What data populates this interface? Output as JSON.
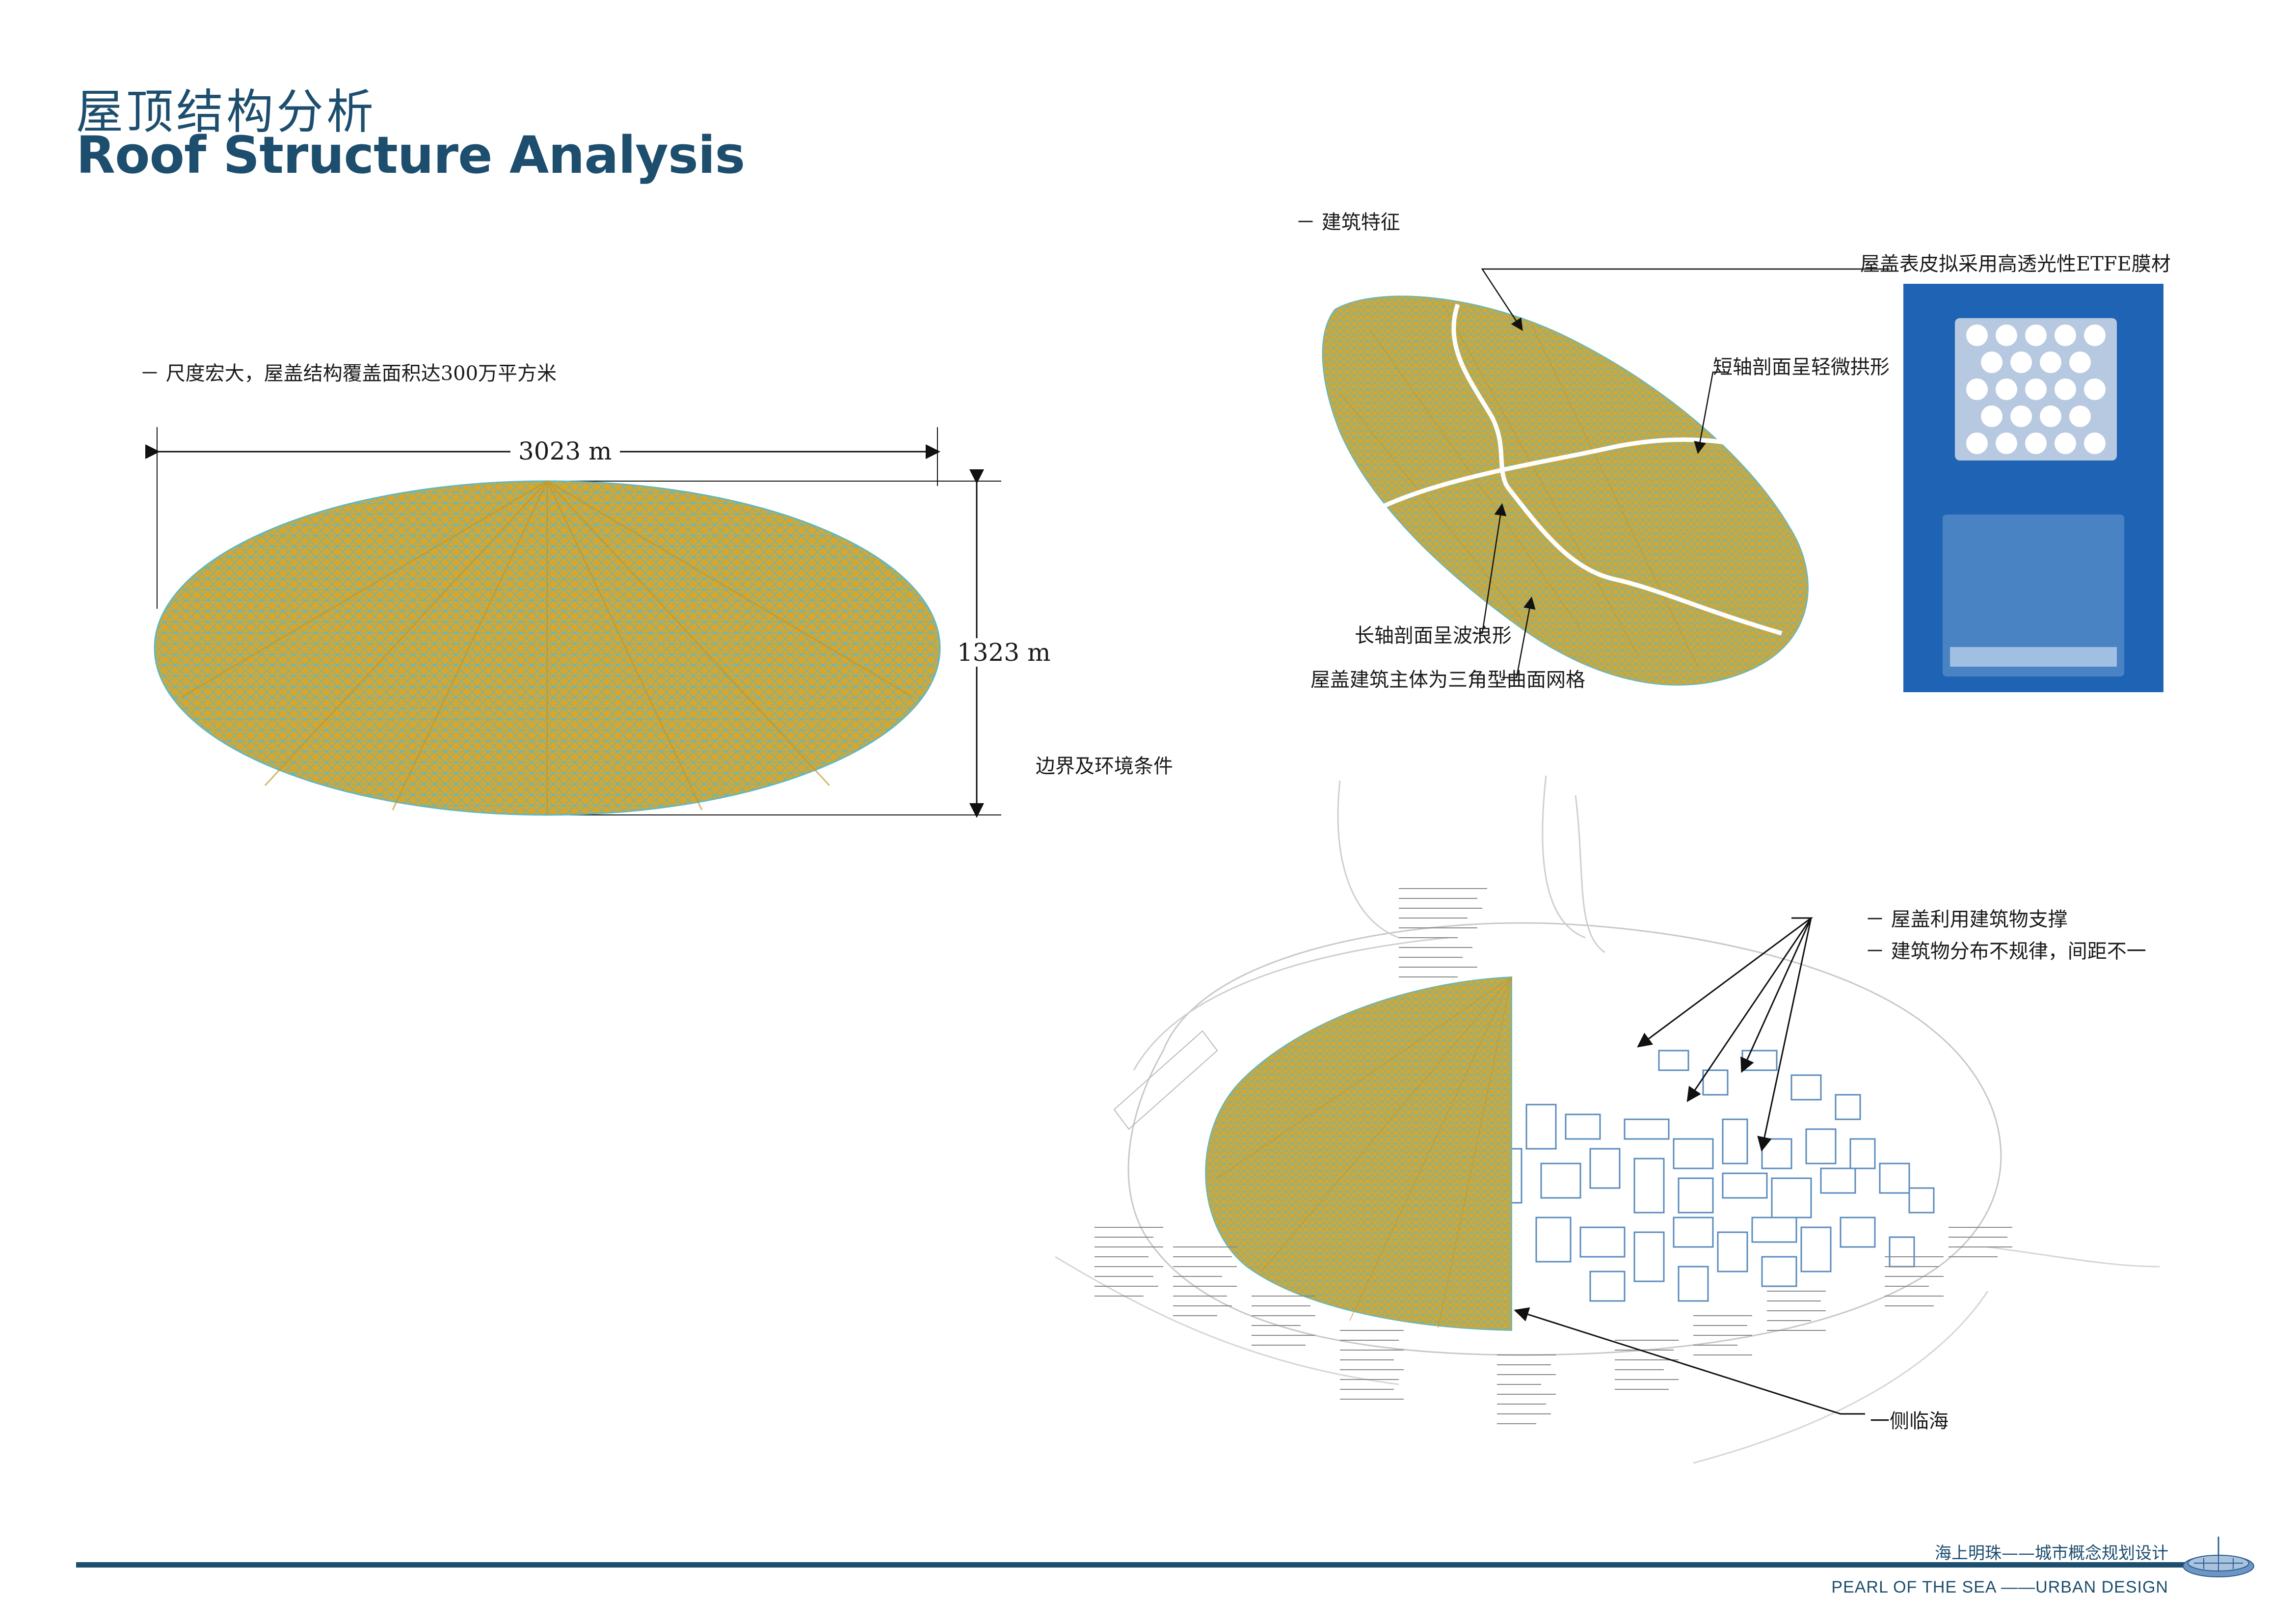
{
  "header": {
    "title_cn": "屋顶结构分析",
    "title_en": "Roof Structure Analysis"
  },
  "left_panel": {
    "note": "－ 尺度宏大，屋盖结构覆盖面积达300万平方米",
    "dimension_width": "3023 m",
    "dimension_height": "1323 m",
    "boundary_label": "边界及环境条件"
  },
  "right_top": {
    "section_label": "－ 建筑特征",
    "callouts": [
      "屋盖表皮拟采用高透光性ETFE膜材",
      "短轴剖面呈轻微拱形",
      "长轴剖面呈波浪形",
      "屋盖建筑主体为三角型曲面网格"
    ]
  },
  "right_bottom": {
    "notes": [
      "－ 屋盖利用建筑物支撑",
      "－ 建筑物分布不规律，间距不一"
    ],
    "sea_label": "一侧临海"
  },
  "footer": {
    "project_cn": "海上明珠——城市概念规划设计",
    "project_en": "PEARL OF THE SEA ——URBAN DESIGN"
  },
  "colors": {
    "title": "#1d4e6e",
    "roof_fill": "#d9a62b",
    "mesh_line": "#5fb8c2",
    "photo_bg": "#1f64b4"
  }
}
